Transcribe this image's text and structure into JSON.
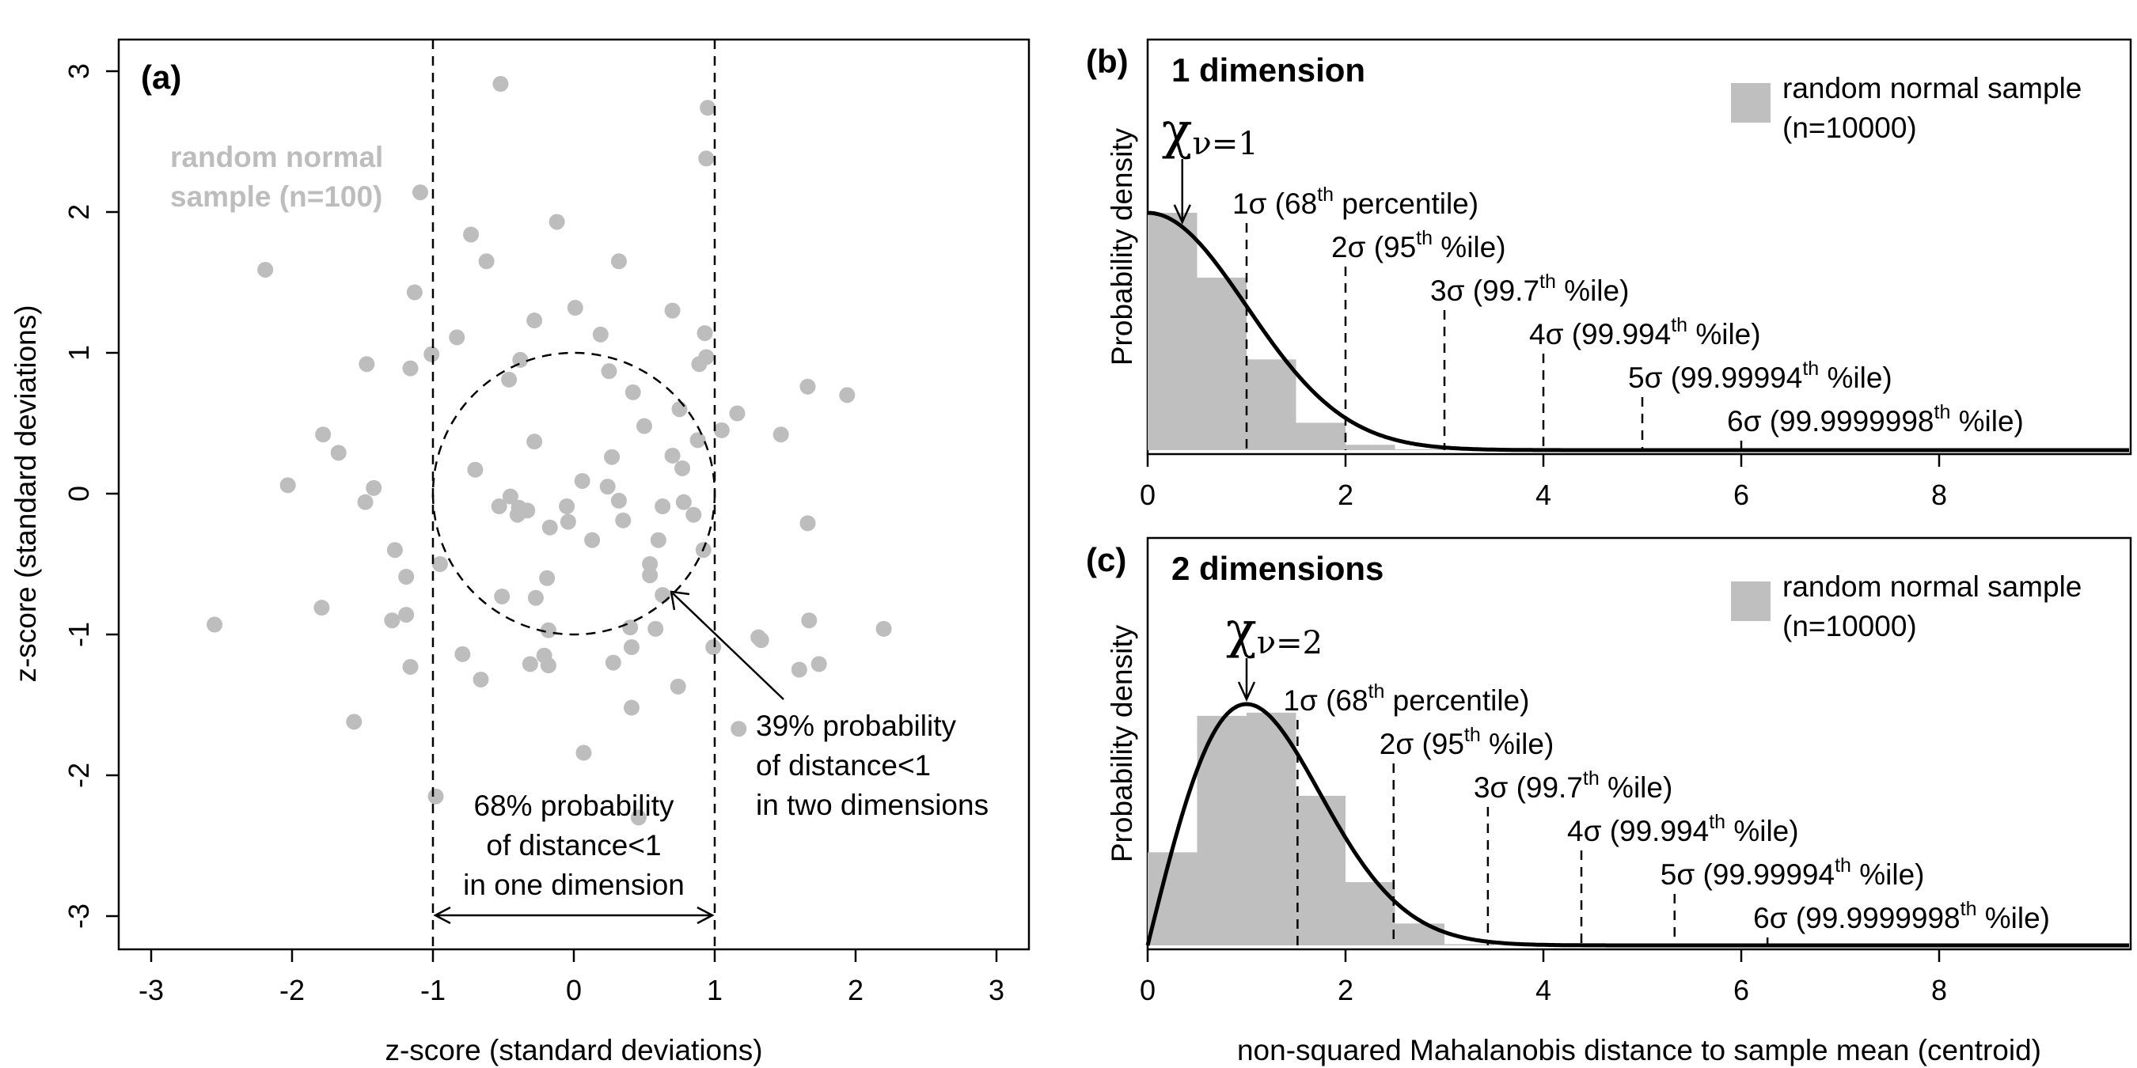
{
  "chart_data": [
    {
      "panel": "(a)",
      "type": "scatter",
      "xlabel": "z-score (standard deviations)",
      "ylabel": "z-score (standard deviations)",
      "xlim": [
        -3.25,
        3.25
      ],
      "ylim": [
        -3.25,
        3.25
      ],
      "xticks": [
        "-3",
        "-2",
        "-1",
        "0",
        "1",
        "2",
        "3"
      ],
      "yticks": [
        "-3",
        "-2",
        "-1",
        "0",
        "1",
        "2",
        "3"
      ],
      "point_color": "#bdbdbd",
      "sample_label_lines": [
        "random normal",
        "sample (n=100)"
      ],
      "annotation_1d_lines": [
        "68% probability",
        "of distance<1",
        "in one dimension"
      ],
      "annotation_2d_lines": [
        "39% probability",
        "of distance<1",
        "in two dimensions"
      ],
      "vertical_lines_x": [
        -1,
        1
      ],
      "circle_radius": 1,
      "points": [
        [
          -0.52,
          2.91
        ],
        [
          0.95,
          2.74
        ],
        [
          0.94,
          2.38
        ],
        [
          -1.09,
          2.14
        ],
        [
          -0.12,
          1.93
        ],
        [
          -0.73,
          1.84
        ],
        [
          -2.19,
          1.59
        ],
        [
          -0.62,
          1.65
        ],
        [
          0.32,
          1.65
        ],
        [
          -1.13,
          1.43
        ],
        [
          0.01,
          1.32
        ],
        [
          -0.28,
          1.23
        ],
        [
          0.7,
          1.3
        ],
        [
          0.93,
          1.14
        ],
        [
          -0.83,
          1.11
        ],
        [
          0.19,
          1.13
        ],
        [
          -1.01,
          0.99
        ],
        [
          0.94,
          0.97
        ],
        [
          -1.47,
          0.92
        ],
        [
          -1.16,
          0.89
        ],
        [
          -0.38,
          0.95
        ],
        [
          0.89,
          0.92
        ],
        [
          0.25,
          0.87
        ],
        [
          1.66,
          0.76
        ],
        [
          1.94,
          0.7
        ],
        [
          -0.46,
          0.81
        ],
        [
          0.42,
          0.72
        ],
        [
          0.75,
          0.6
        ],
        [
          1.16,
          0.57
        ],
        [
          0.5,
          0.48
        ],
        [
          1.05,
          0.45
        ],
        [
          1.47,
          0.42
        ],
        [
          -1.78,
          0.42
        ],
        [
          -0.28,
          0.37
        ],
        [
          0.88,
          0.38
        ],
        [
          -1.67,
          0.29
        ],
        [
          0.7,
          0.27
        ],
        [
          0.27,
          0.26
        ],
        [
          -0.7,
          0.17
        ],
        [
          0.77,
          0.18
        ],
        [
          -2.03,
          0.06
        ],
        [
          -1.42,
          0.04
        ],
        [
          0.06,
          0.09
        ],
        [
          0.24,
          0.05
        ],
        [
          -1.48,
          -0.06
        ],
        [
          -0.53,
          -0.09
        ],
        [
          -0.39,
          -0.1
        ],
        [
          -0.33,
          -0.12
        ],
        [
          -0.05,
          -0.09
        ],
        [
          0.63,
          -0.09
        ],
        [
          -0.4,
          -0.15
        ],
        [
          1.66,
          -0.21
        ],
        [
          0.35,
          -0.19
        ],
        [
          -0.04,
          -0.2
        ],
        [
          -0.17,
          -0.24
        ],
        [
          0.92,
          -0.4
        ],
        [
          0.13,
          -0.33
        ],
        [
          -1.27,
          -0.4
        ],
        [
          -0.95,
          -0.5
        ],
        [
          0.54,
          -0.5
        ],
        [
          0.54,
          -0.58
        ],
        [
          -0.19,
          -0.6
        ],
        [
          -1.19,
          -0.59
        ],
        [
          0.63,
          -0.72
        ],
        [
          -0.27,
          -0.74
        ],
        [
          -0.51,
          -0.73
        ],
        [
          -1.19,
          -0.86
        ],
        [
          -1.29,
          -0.9
        ],
        [
          1.67,
          -0.9
        ],
        [
          -2.55,
          -0.93
        ],
        [
          -1.79,
          -0.81
        ],
        [
          0.4,
          -0.95
        ],
        [
          0.58,
          -0.96
        ],
        [
          -0.18,
          -0.97
        ],
        [
          2.2,
          -0.96
        ],
        [
          1.31,
          -1.02
        ],
        [
          1.33,
          -1.04
        ],
        [
          0.41,
          -1.09
        ],
        [
          0.99,
          -1.09
        ],
        [
          -0.79,
          -1.14
        ],
        [
          -0.21,
          -1.15
        ],
        [
          -0.31,
          -1.21
        ],
        [
          -0.18,
          -1.22
        ],
        [
          -1.16,
          -1.23
        ],
        [
          1.74,
          -1.21
        ],
        [
          1.6,
          -1.25
        ],
        [
          -0.66,
          -1.32
        ],
        [
          0.74,
          -1.37
        ],
        [
          0.41,
          -1.52
        ],
        [
          -1.56,
          -1.62
        ],
        [
          1.17,
          -1.67
        ],
        [
          0.07,
          -1.84
        ],
        [
          -0.98,
          -2.15
        ],
        [
          0.46,
          -2.3
        ],
        [
          0.28,
          -1.2
        ],
        [
          0.78,
          -0.06
        ],
        [
          0.85,
          -0.15
        ],
        [
          0.32,
          -0.05
        ],
        [
          -0.45,
          -0.02
        ],
        [
          0.6,
          -0.33
        ]
      ]
    },
    {
      "panel": "(b)",
      "type": "area",
      "title": "1 dimension",
      "ylabel": "Probability density",
      "dimensions": 1,
      "xlim": [
        0,
        10
      ],
      "xticks": [
        "0",
        "2",
        "4",
        "6",
        "8"
      ],
      "curve_label": "χ",
      "curve_subscript": "ν=1",
      "legend_lines": [
        "random normal sample",
        "(n=10000)"
      ],
      "legend_color": "#bfbfbf",
      "histogram": {
        "bin_width": 0.5,
        "density": [
          0.798,
          0.58,
          0.305,
          0.092,
          0.018,
          0.003,
          0.0003
        ]
      },
      "sigma_lines": [
        {
          "x": 1.0,
          "prefix": "1σ (68",
          "sup": "th",
          "suffix": " percentile)"
        },
        {
          "x": 2.0,
          "prefix": "2σ (95",
          "sup": "th",
          "suffix": " %ile)"
        },
        {
          "x": 3.0,
          "prefix": "3σ (99.7",
          "sup": "th",
          "suffix": " %ile)"
        },
        {
          "x": 4.0,
          "prefix": "4σ (99.994",
          "sup": "th",
          "suffix": " %ile)"
        },
        {
          "x": 5.0,
          "prefix": "5σ (99.99994",
          "sup": "th",
          "suffix": " %ile)"
        },
        {
          "x": 6.0,
          "prefix": "6σ (99.9999998",
          "sup": "th",
          "suffix": " %ile)"
        }
      ]
    },
    {
      "panel": "(c)",
      "type": "area",
      "title": "2 dimensions",
      "ylabel": "Probability density",
      "dimensions": 2,
      "xlim": [
        0,
        10
      ],
      "xticks": [
        "0",
        "2",
        "4",
        "6",
        "8"
      ],
      "xlabel": "non-squared Mahalanobis distance to sample mean (centroid)",
      "curve_label": "χ",
      "curve_subscript": "ν=2",
      "legend_lines": [
        "random normal sample",
        "(n=10000)"
      ],
      "legend_color": "#bfbfbf",
      "histogram": {
        "bin_width": 0.5,
        "density": [
          0.234,
          0.577,
          0.585,
          0.376,
          0.159,
          0.055,
          0.003
        ]
      },
      "sigma_lines": [
        {
          "x": 1.515,
          "prefix": "1σ (68",
          "sup": "th",
          "suffix": " percentile)"
        },
        {
          "x": 2.486,
          "prefix": "2σ (95",
          "sup": "th",
          "suffix": " %ile)"
        },
        {
          "x": 3.439,
          "prefix": "3σ (99.7",
          "sup": "th",
          "suffix": " %ile)"
        },
        {
          "x": 4.384,
          "prefix": "4σ (99.994",
          "sup": "th",
          "suffix": " %ile)"
        },
        {
          "x": 5.326,
          "prefix": "5σ (99.99994",
          "sup": "th",
          "suffix": " %ile)"
        },
        {
          "x": 6.265,
          "prefix": "6σ (99.9999998",
          "sup": "th",
          "suffix": " %ile)"
        }
      ]
    }
  ]
}
